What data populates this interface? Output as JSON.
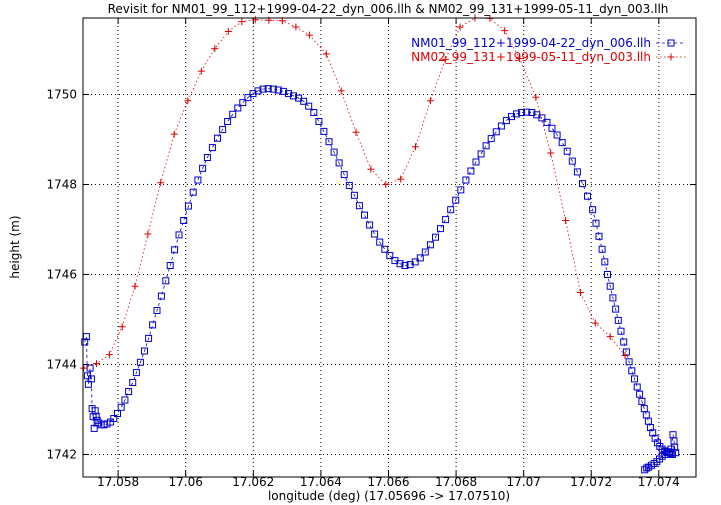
{
  "chart_data": {
    "type": "line",
    "title": "Revisit for NM01_99_112+1999-04-22_dyn_006.llh & NM02_99_131+1999-05-11_dyn_003.llh",
    "xlabel": "longitude (deg) (17.05696 -> 17.07510)",
    "ylabel": "height (m)",
    "xlim": [
      17.05696,
      17.0751
    ],
    "ylim": [
      1741.5,
      1751.7
    ],
    "x_ticks": [
      17.058,
      17.06,
      17.062,
      17.064,
      17.066,
      17.068,
      17.07,
      17.072,
      17.074
    ],
    "x_tick_labels": [
      "17.058",
      "17.06",
      "17.062",
      "17.064",
      "17.066",
      "17.068",
      "17.07",
      "17.072",
      "17.074"
    ],
    "y_ticks": [
      1742,
      1744,
      1746,
      1748,
      1750
    ],
    "y_tick_labels": [
      "1742",
      "1744",
      "1746",
      "1748",
      "1750"
    ],
    "grid": true,
    "legend_position": "top-right",
    "series": [
      {
        "name": "NM01_99_112+1999-04-22_dyn_006.llh",
        "color": "#0000cc",
        "marker": "square",
        "line_style": "dashed",
        "points": [
          [
            17.05701,
            1744.5
          ],
          [
            17.05706,
            1744.62
          ],
          [
            17.05709,
            1743.75
          ],
          [
            17.05712,
            1743.56
          ],
          [
            17.05717,
            1743.92
          ],
          [
            17.05721,
            1743.68
          ],
          [
            17.05723,
            1743.02
          ],
          [
            17.05726,
            1742.84
          ],
          [
            17.05729,
            1742.58
          ],
          [
            17.05732,
            1742.97
          ],
          [
            17.05735,
            1742.85
          ],
          [
            17.05738,
            1742.76
          ],
          [
            17.05743,
            1742.7
          ],
          [
            17.0575,
            1742.66
          ],
          [
            17.05758,
            1742.66
          ],
          [
            17.05767,
            1742.68
          ],
          [
            17.05777,
            1742.72
          ],
          [
            17.05787,
            1742.8
          ],
          [
            17.05798,
            1742.91
          ],
          [
            17.05809,
            1743.05
          ],
          [
            17.0582,
            1743.21
          ],
          [
            17.05831,
            1743.4
          ],
          [
            17.05843,
            1743.6
          ],
          [
            17.05854,
            1743.82
          ],
          [
            17.05866,
            1744.05
          ],
          [
            17.05878,
            1744.3
          ],
          [
            17.0589,
            1744.58
          ],
          [
            17.05902,
            1744.88
          ],
          [
            17.05915,
            1745.2
          ],
          [
            17.05928,
            1745.52
          ],
          [
            17.05941,
            1745.86
          ],
          [
            17.05954,
            1746.2
          ],
          [
            17.05967,
            1746.55
          ],
          [
            17.0598,
            1746.88
          ],
          [
            17.05994,
            1747.2
          ],
          [
            17.06008,
            1747.52
          ],
          [
            17.06022,
            1747.83
          ],
          [
            17.06036,
            1748.1
          ],
          [
            17.0605,
            1748.36
          ],
          [
            17.06064,
            1748.6
          ],
          [
            17.06079,
            1748.82
          ],
          [
            17.06094,
            1749.03
          ],
          [
            17.06109,
            1749.22
          ],
          [
            17.06124,
            1749.4
          ],
          [
            17.06139,
            1749.56
          ],
          [
            17.06154,
            1749.7
          ],
          [
            17.06169,
            1749.82
          ],
          [
            17.06184,
            1749.93
          ],
          [
            17.06199,
            1750.02
          ],
          [
            17.06214,
            1750.08
          ],
          [
            17.06229,
            1750.12
          ],
          [
            17.06244,
            1750.13
          ],
          [
            17.06259,
            1750.12
          ],
          [
            17.06274,
            1750.1
          ],
          [
            17.06289,
            1750.07
          ],
          [
            17.06304,
            1750.02
          ],
          [
            17.06319,
            1749.97
          ],
          [
            17.06334,
            1749.92
          ],
          [
            17.06349,
            1749.85
          ],
          [
            17.06364,
            1749.74
          ],
          [
            17.06379,
            1749.6
          ],
          [
            17.06394,
            1749.4
          ],
          [
            17.06409,
            1749.18
          ],
          [
            17.06424,
            1748.95
          ],
          [
            17.06439,
            1748.72
          ],
          [
            17.06454,
            1748.48
          ],
          [
            17.06469,
            1748.22
          ],
          [
            17.06484,
            1747.98
          ],
          [
            17.06499,
            1747.76
          ],
          [
            17.06514,
            1747.53
          ],
          [
            17.06529,
            1747.32
          ],
          [
            17.06544,
            1747.1
          ],
          [
            17.06559,
            1746.9
          ],
          [
            17.06574,
            1746.72
          ],
          [
            17.06589,
            1746.56
          ],
          [
            17.06604,
            1746.42
          ],
          [
            17.06619,
            1746.31
          ],
          [
            17.06634,
            1746.24
          ],
          [
            17.06649,
            1746.2
          ],
          [
            17.06664,
            1746.22
          ],
          [
            17.06679,
            1746.28
          ],
          [
            17.06694,
            1746.37
          ],
          [
            17.06709,
            1746.5
          ],
          [
            17.06724,
            1746.66
          ],
          [
            17.06739,
            1746.83
          ],
          [
            17.06754,
            1747.02
          ],
          [
            17.06769,
            1747.22
          ],
          [
            17.06784,
            1747.44
          ],
          [
            17.06799,
            1747.65
          ],
          [
            17.06814,
            1747.88
          ],
          [
            17.06829,
            1748.1
          ],
          [
            17.06844,
            1748.3
          ],
          [
            17.06859,
            1748.5
          ],
          [
            17.06874,
            1748.68
          ],
          [
            17.06889,
            1748.86
          ],
          [
            17.06904,
            1749.02
          ],
          [
            17.06919,
            1749.17
          ],
          [
            17.06934,
            1749.3
          ],
          [
            17.06949,
            1749.42
          ],
          [
            17.06964,
            1749.51
          ],
          [
            17.06979,
            1749.57
          ],
          [
            17.06994,
            1749.6
          ],
          [
            17.07009,
            1749.61
          ],
          [
            17.07024,
            1749.6
          ],
          [
            17.07039,
            1749.55
          ],
          [
            17.07054,
            1749.48
          ],
          [
            17.07069,
            1749.38
          ],
          [
            17.07084,
            1749.25
          ],
          [
            17.07099,
            1749.1
          ],
          [
            17.07114,
            1748.93
          ],
          [
            17.07129,
            1748.74
          ],
          [
            17.07144,
            1748.52
          ],
          [
            17.07159,
            1748.28
          ],
          [
            17.07174,
            1748.02
          ],
          [
            17.07189,
            1747.74
          ],
          [
            17.07204,
            1747.44
          ],
          [
            17.07214,
            1747.14
          ],
          [
            17.07223,
            1746.85
          ],
          [
            17.07232,
            1746.56
          ],
          [
            17.0724,
            1746.28
          ],
          [
            17.07248,
            1746.0
          ],
          [
            17.07256,
            1745.74
          ],
          [
            17.07264,
            1745.48
          ],
          [
            17.07272,
            1745.23
          ],
          [
            17.0728,
            1744.98
          ],
          [
            17.07288,
            1744.74
          ],
          [
            17.07296,
            1744.5
          ],
          [
            17.07304,
            1744.28
          ],
          [
            17.07312,
            1744.06
          ],
          [
            17.0732,
            1743.86
          ],
          [
            17.07328,
            1743.68
          ],
          [
            17.07336,
            1743.5
          ],
          [
            17.07343,
            1743.34
          ],
          [
            17.0735,
            1743.18
          ],
          [
            17.07357,
            1743.02
          ],
          [
            17.07363,
            1742.88
          ],
          [
            17.07369,
            1742.74
          ],
          [
            17.07375,
            1742.6
          ],
          [
            17.07382,
            1742.48
          ],
          [
            17.07389,
            1742.36
          ],
          [
            17.07396,
            1742.26
          ],
          [
            17.07403,
            1742.18
          ],
          [
            17.0741,
            1742.12
          ],
          [
            17.07417,
            1742.08
          ],
          [
            17.07424,
            1742.06
          ],
          [
            17.07431,
            1742.04
          ],
          [
            17.07436,
            1742.02
          ],
          [
            17.0744,
            1742.0
          ],
          [
            17.0745,
            1742.04
          ],
          [
            17.07447,
            1742.16
          ],
          [
            17.07445,
            1742.3
          ],
          [
            17.07442,
            1742.44
          ],
          [
            17.07436,
            1742.12
          ],
          [
            17.0743,
            1742.06
          ],
          [
            17.07424,
            1742.04
          ],
          [
            17.07418,
            1742.0
          ],
          [
            17.0741,
            1741.96
          ],
          [
            17.07402,
            1741.9
          ],
          [
            17.07394,
            1741.84
          ],
          [
            17.07386,
            1741.8
          ],
          [
            17.07378,
            1741.76
          ],
          [
            17.0737,
            1741.72
          ],
          [
            17.07364,
            1741.7
          ],
          [
            17.07358,
            1741.66
          ]
        ]
      },
      {
        "name": "NM02_99_131+1999-05-11_dyn_003.llh",
        "color": "#dd0000",
        "marker": "plus",
        "line_style": "dotted",
        "points": [
          [
            17.05698,
            1743.92
          ],
          [
            17.05736,
            1744.02
          ],
          [
            17.05774,
            1744.22
          ],
          [
            17.05812,
            1744.84
          ],
          [
            17.0585,
            1745.74
          ],
          [
            17.05888,
            1746.9
          ],
          [
            17.05926,
            1748.04
          ],
          [
            17.05966,
            1749.12
          ],
          [
            17.06006,
            1749.86
          ],
          [
            17.06046,
            1750.52
          ],
          [
            17.06086,
            1751.02
          ],
          [
            17.06126,
            1751.4
          ],
          [
            17.06166,
            1751.62
          ],
          [
            17.06206,
            1751.66
          ],
          [
            17.06246,
            1751.65
          ],
          [
            17.06286,
            1751.64
          ],
          [
            17.06326,
            1751.5
          ],
          [
            17.06366,
            1751.32
          ],
          [
            17.06416,
            1750.9
          ],
          [
            17.0646,
            1750.08
          ],
          [
            17.06504,
            1749.16
          ],
          [
            17.06548,
            1748.34
          ],
          [
            17.06592,
            1748.0
          ],
          [
            17.06636,
            1748.12
          ],
          [
            17.0668,
            1748.84
          ],
          [
            17.06724,
            1749.86
          ],
          [
            17.06768,
            1750.78
          ],
          [
            17.06812,
            1751.5
          ],
          [
            17.06856,
            1751.7
          ],
          [
            17.069,
            1751.69
          ],
          [
            17.06944,
            1751.42
          ],
          [
            17.06988,
            1750.8
          ],
          [
            17.07036,
            1749.94
          ],
          [
            17.0708,
            1748.7
          ],
          [
            17.07124,
            1747.2
          ],
          [
            17.07168,
            1745.6
          ],
          [
            17.07212,
            1744.92
          ],
          [
            17.07256,
            1744.62
          ],
          [
            17.073,
            1744.2
          ]
        ]
      }
    ]
  }
}
